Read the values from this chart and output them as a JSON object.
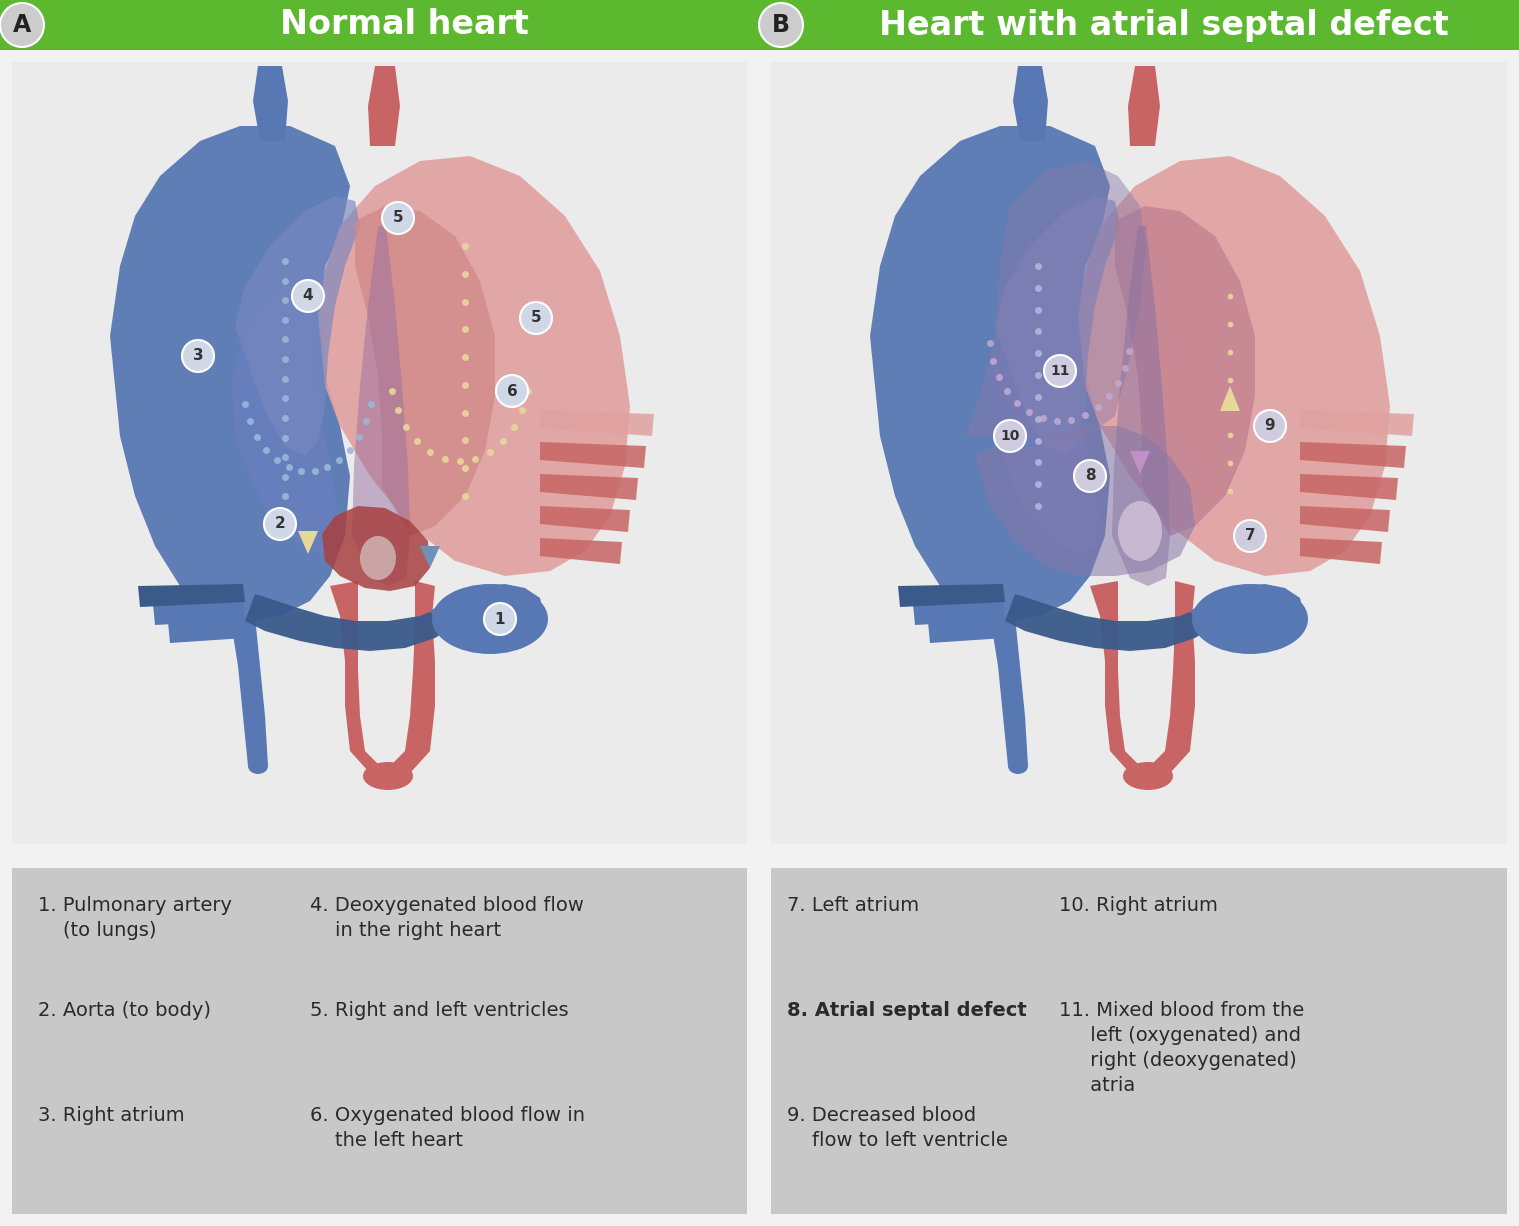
{
  "bg_color": "#f2f2f2",
  "panel_bg": "#ebebeb",
  "header_green": "#5cb82e",
  "header_text_color": "#ffffff",
  "legend_bg": "#c8c8c8",
  "title_A": "Normal heart",
  "title_B": "Heart with atrial septal defect",
  "badge_A": "A",
  "badge_B": "B",
  "heart_blue": "#5878b4",
  "heart_blue_dark": "#3a5a8a",
  "heart_blue_mid": "#7090c0",
  "heart_red": "#c86464",
  "heart_pink": "#e0a0a0",
  "heart_pink_light": "#ecc0b8",
  "heart_dark_red": "#a84040",
  "heart_purple": "#8878a8",
  "arrow_cream": "#e8d898",
  "arrow_blue": "#9ab8d8",
  "arrow_pink": "#d8a8c8",
  "badge_bg": "#d0d8e8",
  "badge_bg2": "#d0cce0"
}
